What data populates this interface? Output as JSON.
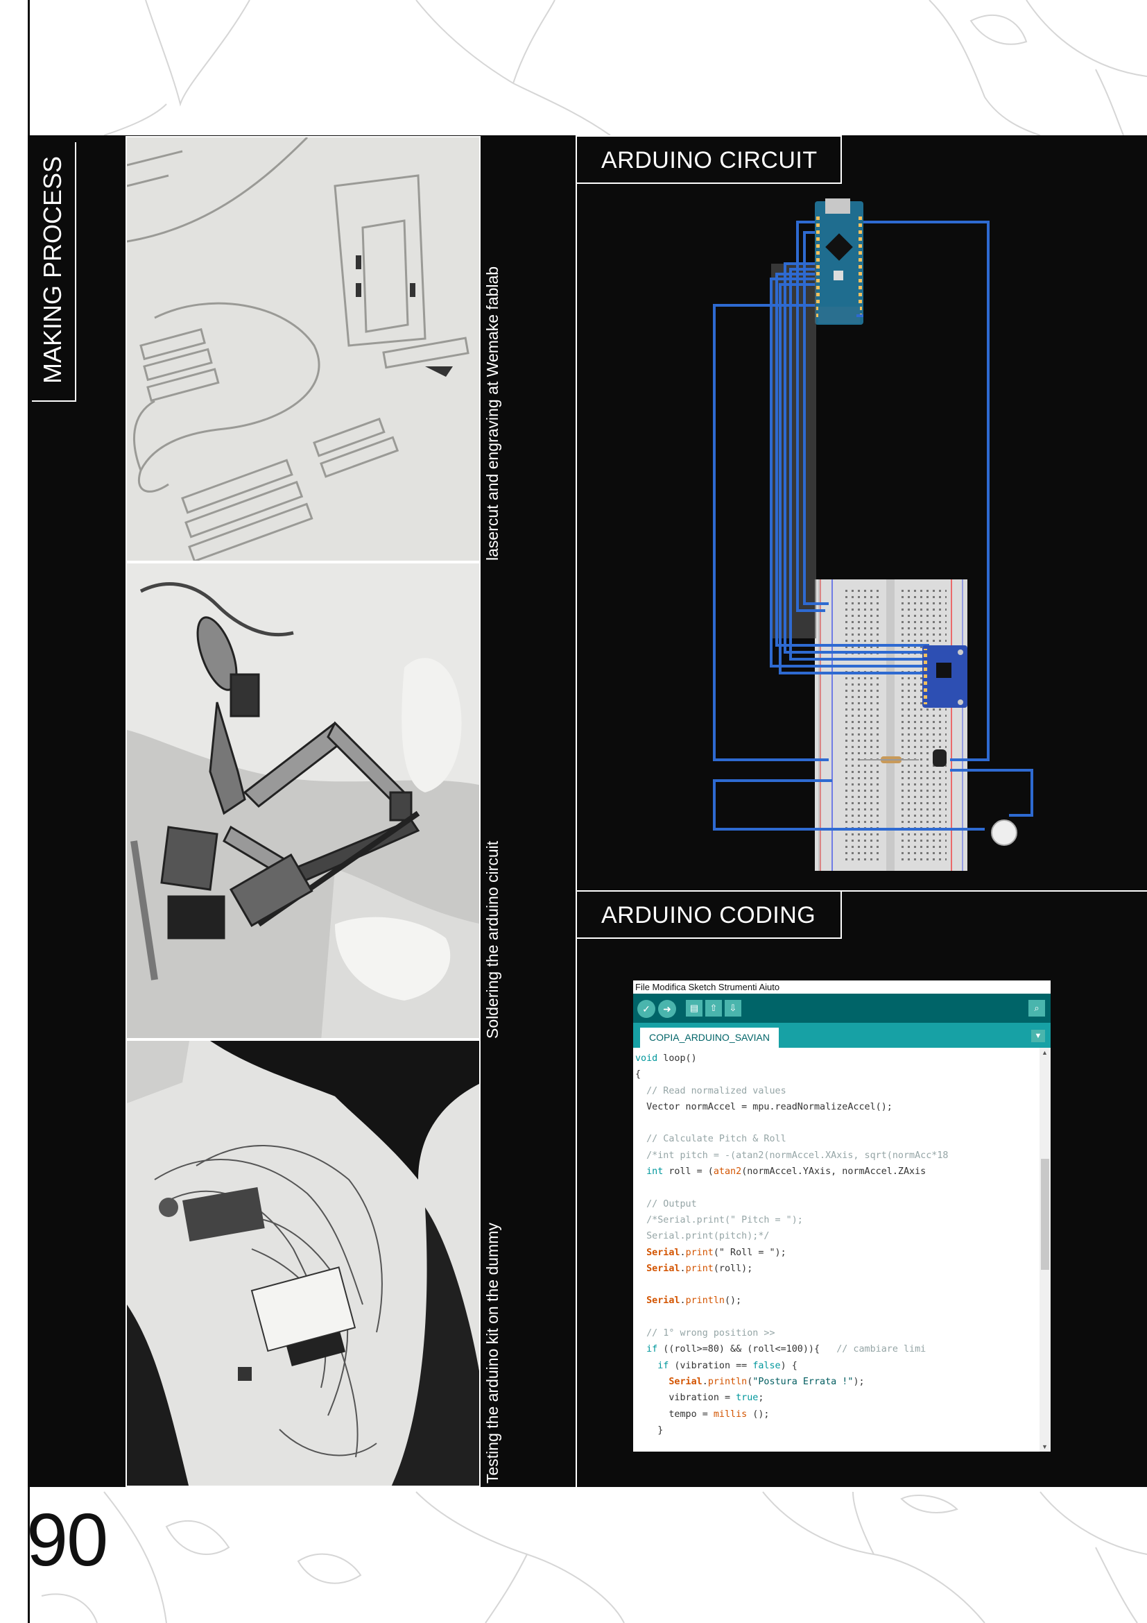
{
  "section_titles": {
    "making_process": "MAKING PROCESS",
    "arduino_circuit": "ARDUINO CIRCUIT",
    "arduino_coding": "ARDUINO CODING"
  },
  "photos": [
    {
      "caption": "lasercut and engraving at Wemake fablab"
    },
    {
      "caption": "Soldering the arduino circuit"
    },
    {
      "caption": "Testing the arduino kit on the dummy"
    }
  ],
  "page_number": "90",
  "ide": {
    "menu": "File Modifica Sketch Strumenti Aiuto",
    "tab": "COPIA_ARDUINO_SAVIAN",
    "toolbar_icons": [
      "verify-icon",
      "upload-icon",
      "new-icon",
      "open-icon",
      "save-icon"
    ],
    "search_icon": "magnifier-icon",
    "code_lines": [
      {
        "t": [
          [
            "k",
            "void"
          ],
          [
            "n",
            " loop()"
          ]
        ]
      },
      {
        "t": [
          [
            "n",
            "{"
          ]
        ]
      },
      {
        "t": [
          [
            "c",
            "  // Read normalized values"
          ]
        ]
      },
      {
        "t": [
          [
            "n",
            "  Vector normAccel = mpu.readNormalizeAccel();"
          ]
        ]
      },
      {
        "t": [
          [
            "n",
            ""
          ]
        ]
      },
      {
        "t": [
          [
            "c",
            "  // Calculate Pitch & Roll"
          ]
        ]
      },
      {
        "t": [
          [
            "c",
            "  /*int pitch = -(atan2(normAccel.XAxis, sqrt(normAcc*18"
          ]
        ]
      },
      {
        "t": [
          [
            "k",
            "  int"
          ],
          [
            "n",
            " roll = ("
          ],
          [
            "f",
            "atan2"
          ],
          [
            "n",
            "(normAccel.YAxis, normAccel.ZAxis"
          ]
        ]
      },
      {
        "t": [
          [
            "n",
            ""
          ]
        ]
      },
      {
        "t": [
          [
            "c",
            "  // Output"
          ]
        ]
      },
      {
        "t": [
          [
            "c",
            "  /*Serial.print(\" Pitch = \");"
          ]
        ]
      },
      {
        "t": [
          [
            "c",
            "  Serial.print(pitch);*/"
          ]
        ]
      },
      {
        "t": [
          [
            "b",
            "  Serial"
          ],
          [
            "n",
            "."
          ],
          [
            "f",
            "print"
          ],
          [
            "n",
            "(\" Roll = \");"
          ]
        ]
      },
      {
        "t": [
          [
            "b",
            "  Serial"
          ],
          [
            "n",
            "."
          ],
          [
            "f",
            "print"
          ],
          [
            "n",
            "(roll);"
          ]
        ]
      },
      {
        "t": [
          [
            "n",
            ""
          ]
        ]
      },
      {
        "t": [
          [
            "b",
            "  Serial"
          ],
          [
            "n",
            "."
          ],
          [
            "f",
            "println"
          ],
          [
            "n",
            "();"
          ]
        ]
      },
      {
        "t": [
          [
            "n",
            ""
          ]
        ]
      },
      {
        "t": [
          [
            "c",
            "  // 1° wrong position >>"
          ]
        ]
      },
      {
        "t": [
          [
            "k",
            "  if"
          ],
          [
            "n",
            " ((roll>=80) && (roll<=100)){   "
          ],
          [
            "c",
            "// cambiare limi"
          ]
        ]
      },
      {
        "t": [
          [
            "k",
            "    if"
          ],
          [
            "n",
            " (vibration == "
          ],
          [
            "k",
            "false"
          ],
          [
            "n",
            ") {"
          ]
        ]
      },
      {
        "t": [
          [
            "b",
            "      Serial"
          ],
          [
            "n",
            "."
          ],
          [
            "f",
            "println"
          ],
          [
            "n",
            "("
          ],
          [
            "s",
            "\"Postura Errata !\""
          ],
          [
            "n",
            ");"
          ]
        ]
      },
      {
        "t": [
          [
            "n",
            "      vibration = "
          ],
          [
            "k",
            "true"
          ],
          [
            "n",
            ";"
          ]
        ]
      },
      {
        "t": [
          [
            "n",
            "      tempo = "
          ],
          [
            "f",
            "millis"
          ],
          [
            "n",
            " ();"
          ]
        ]
      },
      {
        "t": [
          [
            "n",
            "    }"
          ]
        ]
      }
    ]
  }
}
